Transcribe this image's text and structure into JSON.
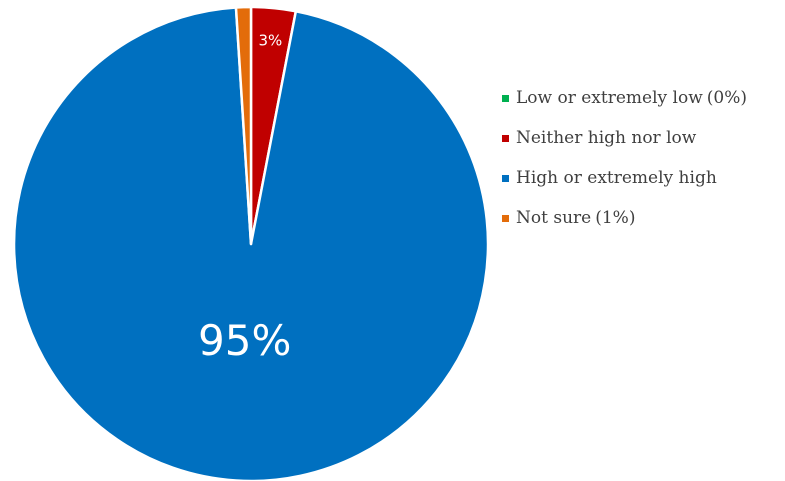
{
  "chart_data": {
    "type": "pie",
    "title": "",
    "start_angle_deg": 0,
    "direction": "clockwise",
    "slices": [
      {
        "label": "Low or extremely low",
        "value": 0,
        "color": "#00B050",
        "slice_label": "",
        "legend_suffix": "(0%)"
      },
      {
        "label": "Neither high nor low",
        "value": 3,
        "color": "#C00000",
        "slice_label": "3%",
        "legend_suffix": ""
      },
      {
        "label": "High or extremely high",
        "value": 95,
        "color": "#0070C0",
        "slice_label": "95%",
        "legend_suffix": ""
      },
      {
        "label": "Not sure",
        "value": 1,
        "color": "#E36C0A",
        "slice_label": "",
        "legend_suffix": "(1%)"
      }
    ],
    "legend_position": "right"
  }
}
